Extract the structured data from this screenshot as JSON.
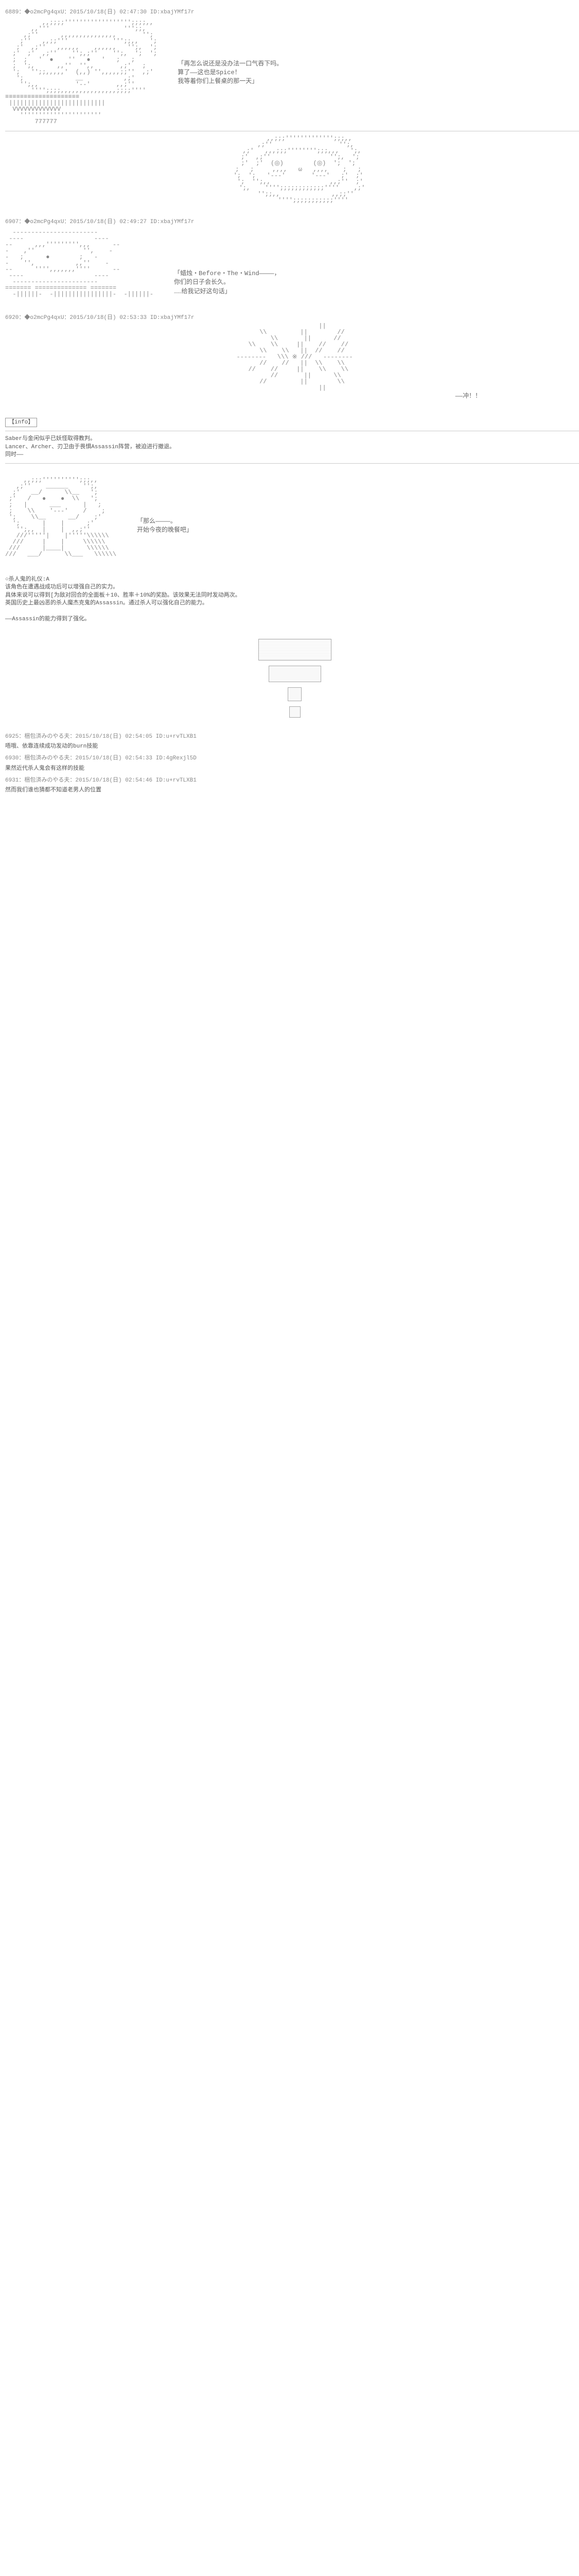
{
  "posts": {
    "p1": {
      "header": "6889：◆o2mcPg4qxU：2015/10/18(日) 02:47:30 ID:xbajYMf17r",
      "line1": "「再怎么说还是没办法一口气吞下吗。",
      "line2": "算了――这也是Spice！",
      "line3": "我等着你们上餐桌的那一天」"
    },
    "p2": {
      "header": "6907：◆o2mcPg4qxU：2015/10/18(日) 02:49:27 ID:xbajYMf17r"
    },
    "p3": {
      "header": "6920：◆o2mcPg4qxU：2015/10/18(日) 02:53:33 ID:xbajYMf17r",
      "line1": "「蜡烛・Before・The・Wind――――，",
      "line2": "你们的日子会长久。",
      "line3": "……给我记好这句话」",
      "line4": "――冲！！",
      "info_label": "【info】",
      "info1": "Saber与金闲似乎已妖怪取得教判。",
      "info2": "Lancer、Archer、刃卫由于畏惧Assassin阵营，被迫进行撤退。",
      "info3": "同时――",
      "line5": "「那么――――。",
      "line6": "开始今夜的晚餐吧」",
      "skill_title": "○杀人鬼的礼仪:A",
      "skill1": "该角色在遭遇战成功后可以增强自己的实力。",
      "skill2": "具体来说可以得到[为敌对回合的全面板＋10、胜率＋10%的奖励。该效果无法同时发动两次。",
      "skill3": "英国历史上最凶恶的杀人魔杰克鬼的Assassin。通过杀人可以强化自己的能力。",
      "skill4": "――Assassin的能力得到了强化。"
    },
    "c1": {
      "header": "6925：梱包済みのやる夫：2015/10/18(日) 02:54:05 ID:u+rvTLXB1",
      "body": "唔哦、依靠连续成功发动的burn技能"
    },
    "c2": {
      "header": "6930：梱包済みのやる夫：2015/10/18(日) 02:54:33 ID:4gRexjl5D",
      "body": "果然近代杀人鬼会有这样的技能"
    },
    "c3": {
      "header": "6931：梱包済みのやる夫：2015/10/18(日) 02:54:46 ID:u+rvTLXB1",
      "body": "然而我们谁也猜都不知道老男人的位置"
    }
  },
  "ascii": {
    "face1": "          ,,;;;;'''''''''''''''''';;;;,,\n       ,,'''                    ''';;,\n     ,;''      ,,,,,,,,,,,,,,,       '';\n    ;''   ,,;;'''            ''';;,,   ';\n   ;'  ,;''   ,,,,,,    ,,,,,,   '';,  ';\n  ;'  ;'  ,;''    '';,;''    '';,  ';  ';\n  ;  ;   '  ●    ''   ●   '   ;   ;\n  ;  ';,      ,,''  '',,       ,;'   ;\n  ';   '';;,,,,,'  (,,) '',,,,,;;''  ,;'\n   ';              __           ,;'\n    '';,,          '--'       ,,;''\n       '''';;;;,,,,,,,,,,,,,,,;;;;''''\n≡≡≡≡≡≡≡≡≡≡≡≡≡≡≡≡≡≡≡≡\n ||||||||||||||||||||||||||\n  VVVVVVVVVVVVV\n    ''''''''''''''''''''''\n        777777",
    "hooded": "        ,,;;;''''''''''''';;;,,\n      ,;''                  '';,\n    ,;'   ,,,;;;'''''''';;;,,,   ';,\n   ;'  ,;''                '';,  ';\n  ;'  ;'  (◎)        (◎)  ';  ';\n  ;   ;     ,,,,   ω   ,,,,    ;   ;\n  ';  ';   '---'       '---'   ;'  ;'\n   ';  '';,,                ,,;''  ;'\n    ';,    '''';;;;;;;;;;;;''''    ,;'\n      '';;,,              ,,;;''\n          '''';;;;;;;;;;;''''",
    "eye": "  -----------------------\n ----                   ----\n--      ,,,''''''''',,,      --\n-    ,''             '',    -\n-   ;      ●        ;   -\n-    '',           ,,''    -\n--      '''',,,,,,,''''      --\n ----                   ----\n  -----------------------\n======= ============== =======\n  -||||||-  -||||||||||||||||-  -||||||-",
    "burst": "               ||\n    \\\\         ||        //\n      \\\\       ||      //\n  \\\\    \\\\     ||    //    //\n    \\\\    \\\\   ||  //    //\n--------   \\\\\\ ※ ///   --------\n    //    //   ||  \\\\    \\\\\n  //    //     ||    \\\\    \\\\\n      //       ||      \\\\\n    //         ||        \\\\\n               ||",
    "jack": "     ,,;;;'''''''''';;;,,\n   ,;''    ______    '';,\n  ;'   __/      \\\\__   ';\n ;'   /   ●    ●  \\\\   ';\n ;   |      ___      |   ;\n ;    \\\\    '---'    /    ;\n ';    \\\\__      __/    ;'\n  ';      |    |      ;'\n   '';,,  |    |  ,,;''\n   ///'''''|    |'''''\\\\\\\\\\\\\n  ///     |    |     \\\\\\\\\\\\\n ///      |____|      \\\\\\\\\\\\\n///   ___/      \\\\___   \\\\\\\\\\\\"
  }
}
